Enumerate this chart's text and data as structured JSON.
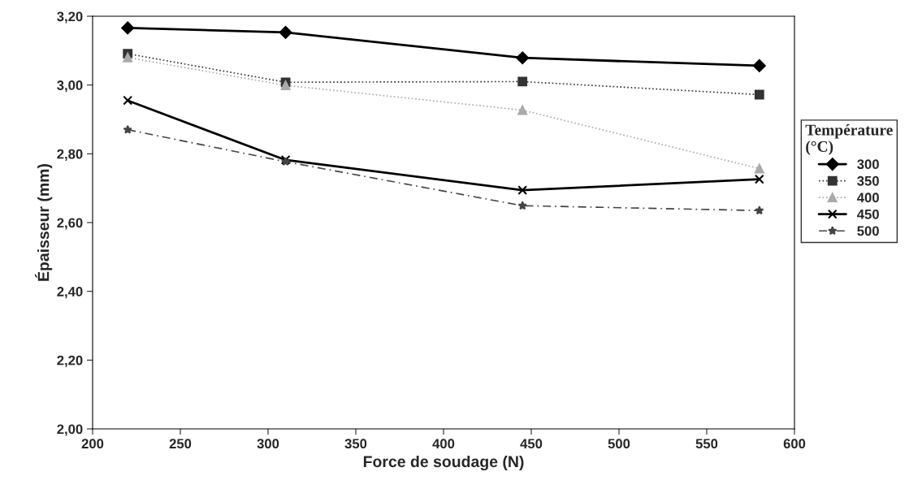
{
  "chart_data": {
    "type": "line",
    "xlabel": "Force de soudage (N)",
    "ylabel": "Épaisseur (mm)",
    "legend_title": "Température\n(°C)",
    "legend": "right",
    "grid": false,
    "x": [
      220,
      310,
      445,
      580
    ],
    "series": [
      {
        "name": "300",
        "color": "#000000",
        "marker": "diamond",
        "line_style": "solid",
        "values": [
          3.166,
          3.153,
          3.079,
          3.056
        ]
      },
      {
        "name": "350",
        "color": "#333333",
        "marker": "square",
        "line_style": "dotted",
        "values": [
          3.091,
          3.008,
          3.01,
          2.972
        ]
      },
      {
        "name": "400",
        "color": "#aaaaaa",
        "marker": "triangle",
        "line_style": "dotted",
        "values": [
          3.08,
          2.999,
          2.927,
          2.757
        ]
      },
      {
        "name": "450",
        "color": "#000000",
        "marker": "cross",
        "line_style": "solid",
        "values": [
          2.955,
          2.782,
          2.694,
          2.726
        ]
      },
      {
        "name": "500",
        "color": "#444444",
        "marker": "star",
        "line_style": "dashed",
        "values": [
          2.87,
          2.777,
          2.649,
          2.635
        ]
      }
    ],
    "xlim": [
      200,
      600
    ],
    "xticks": [
      200,
      250,
      300,
      350,
      400,
      450,
      500,
      550,
      600
    ],
    "ylim": [
      2.0,
      3.2
    ],
    "yticks": [
      {
        "value": 2.0,
        "label": "2,00"
      },
      {
        "value": 2.2,
        "label": "2,20"
      },
      {
        "value": 2.4,
        "label": "2,40"
      },
      {
        "value": 2.6,
        "label": "2,60"
      },
      {
        "value": 2.8,
        "label": "2,80"
      },
      {
        "value": 3.0,
        "label": "3,00"
      },
      {
        "value": 3.2,
        "label": "3,20"
      }
    ]
  }
}
